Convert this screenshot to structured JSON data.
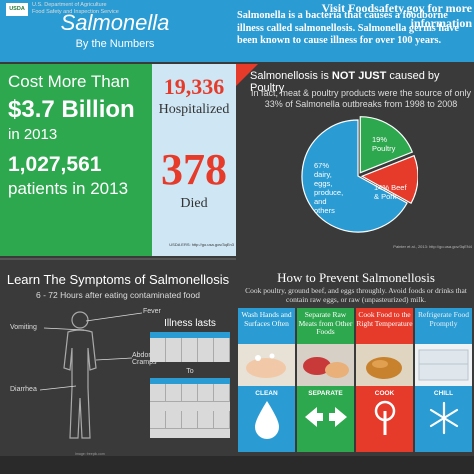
{
  "header": {
    "title": "Salmonella",
    "subtitle": "By the Numbers",
    "intro": "Salmonella is a bacteria that causes a foodborne illness called salmonellosis. Salmonella germs have been known to cause illness for over 100 years."
  },
  "cost": {
    "line1": "Cost More Than",
    "amount": "$3.7 Billion",
    "year": "in 2013",
    "patients": "1,027,561",
    "patients_label": "patients in 2013"
  },
  "impact": {
    "hospitalized_count": "19,336",
    "hospitalized_label": "Hospitalized",
    "died_count": "378",
    "died_label": "Died",
    "source": "USDA ERS: http://go.usa.gov/3qEn3"
  },
  "pie": {
    "title_pre": "Salmonellosis is ",
    "title_bold": "NOT JUST",
    "title_post": " caused by Poultry",
    "desc": "In fact, meat & poultry products were the source of only 33% of Salmonella outbreaks from 1998 to 2008",
    "source": "Painter et al., 2013: http://go.usa.gov/3qEN4",
    "slices": [
      {
        "label": "67% dairy, eggs, produce, and others",
        "value": 67,
        "color": "#2a9bd3"
      },
      {
        "label": "19% Poultry",
        "value": 19,
        "color": "#2ea84f"
      },
      {
        "label": "14% Beef & Pork",
        "value": 14,
        "color": "#e63a2a"
      }
    ]
  },
  "symptoms": {
    "title": "Learn The Symptoms of Salmonellosis",
    "subtitle": "6 - 72 Hours after eating contaminated food",
    "items": [
      "Fever",
      "Vomiting",
      "Abdominal Cramps",
      "Diarrhea"
    ],
    "illness_title": "Illness lasts",
    "to_label": "To",
    "image_credit": "Image: freepik.com"
  },
  "prevention": {
    "title": "How to Prevent Salmonellosis",
    "desc": "Cook poultry, ground beef, and eggs throughly. Avoid foods or drinks that contain raw eggs, or raw (unpasteurized) milk.",
    "tips": [
      {
        "text": "Wash Hands and Surfaces Often",
        "action": "CLEAN",
        "color": "#2a9bd3",
        "icon": "water-drop-icon"
      },
      {
        "text": "Separate Raw Meats from Other Foods",
        "action": "SEPARATE",
        "color": "#2ea84f",
        "icon": "separate-arrows-icon"
      },
      {
        "text": "Cook Food to the Right Temperature",
        "action": "COOK",
        "color": "#e63a2a",
        "icon": "thermometer-icon"
      },
      {
        "text": "Refrigerate Food Promptly",
        "action": "CHILL",
        "color": "#2a9bd3",
        "icon": "snowflake-icon"
      }
    ]
  },
  "footer": {
    "logo": "USDA",
    "dept_line1": "U.S. Department of Agriculture",
    "dept_line2": "Food Safety and Inspection Service",
    "link": "Visit Foodsafety.gov for more information"
  }
}
